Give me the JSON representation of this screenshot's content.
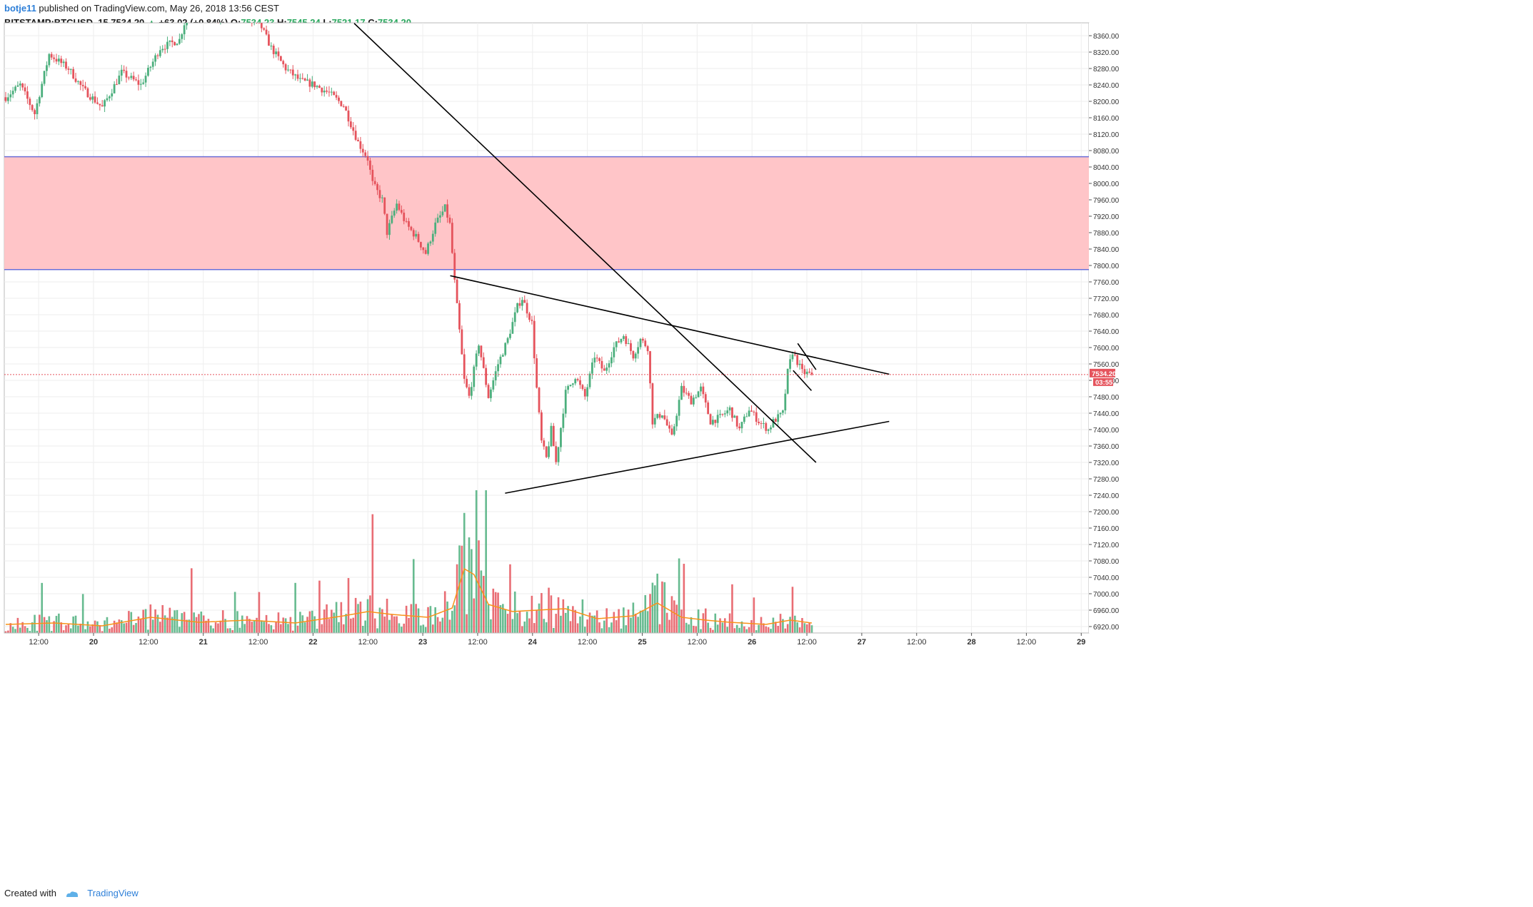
{
  "header": {
    "author": "botje11",
    "published_text": "published on TradingView.com, May 26, 2018 13:56 CEST",
    "symbol": "BITSTAMP:BTCUSD, 15",
    "last_price": "7534.20",
    "change_arrow": "▲",
    "change": "+63.02 (+0.84%)",
    "o_label": "O:",
    "o_value": "7534.23",
    "h_label": "H:",
    "h_value": "7545.24",
    "l_label": "L:",
    "l_value": "7521.17",
    "c_label": "C:",
    "c_value": "7534.20"
  },
  "footer": {
    "created_with": "Created with",
    "brand": "TradingView"
  },
  "price_tag": {
    "price": "7534.20",
    "countdown": "03:55"
  },
  "colors": {
    "up": "#4caf7d",
    "down": "#e5535c",
    "zone_fill": "#ffc2c5",
    "zone_line": "#6a6fd8",
    "trendline": "#000000",
    "vol_ma": "#f7931a",
    "grid": "#eeeeee",
    "price_tag": "#e5535c"
  },
  "chart_data": {
    "type": "candlestick",
    "symbol": "BITSTAMP:BTCUSD",
    "interval": "15",
    "ylim": [
      6900,
      8400
    ],
    "y_ticks": [
      "8360.00",
      "8320.00",
      "8280.00",
      "8240.00",
      "8200.00",
      "8160.00",
      "8120.00",
      "8080.00",
      "8040.00",
      "8000.00",
      "7960.00",
      "7920.00",
      "7880.00",
      "7840.00",
      "7800.00",
      "7760.00",
      "7720.00",
      "7680.00",
      "7640.00",
      "7600.00",
      "7560.00",
      "7520.00",
      "7480.00",
      "7440.00",
      "7400.00",
      "7360.00",
      "7320.00",
      "7280.00",
      "7240.00",
      "7200.00",
      "7160.00",
      "7120.00",
      "7080.00",
      "7040.00",
      "7000.00",
      "6960.00",
      "6920.00"
    ],
    "x_ticks": [
      "12:00",
      "20",
      "12:00",
      "21",
      "12:00",
      "22",
      "12:00",
      "23",
      "12:00",
      "24",
      "12:00",
      "25",
      "12:00",
      "26",
      "12:00",
      "27",
      "12:00",
      "28",
      "12:00",
      "29"
    ],
    "x_start": "May 19 06:00",
    "x_end": "May 29 12:00",
    "zone": {
      "top": 8065,
      "bottom": 7790
    },
    "trendlines": [
      {
        "name": "descending",
        "from": [
          "May 22 09:00",
          8390
        ],
        "to": [
          "May 26 14:00",
          7320
        ]
      },
      {
        "name": "upper",
        "from": [
          "May 23 06:00",
          7775
        ],
        "to": [
          "May 27 06:00",
          7535
        ]
      },
      {
        "name": "lower",
        "from": [
          "May 23 18:00",
          7245
        ],
        "to": [
          "May 27 06:00",
          7420
        ]
      },
      {
        "name": "flag-top",
        "from": [
          "May 26 10:00",
          7610
        ],
        "to": [
          "May 26 14:00",
          7546
        ]
      },
      {
        "name": "flag-bottom",
        "from": [
          "May 26 09:00",
          7544
        ],
        "to": [
          "May 26 13:00",
          7495
        ]
      }
    ],
    "current_price": 7534.2,
    "price_path": [
      [
        0,
        8210
      ],
      [
        6,
        8240
      ],
      [
        12,
        8170
      ],
      [
        18,
        8315
      ],
      [
        26,
        8280
      ],
      [
        32,
        8230
      ],
      [
        40,
        8185
      ],
      [
        48,
        8270
      ],
      [
        56,
        8240
      ],
      [
        64,
        8330
      ],
      [
        72,
        8350
      ],
      [
        76,
        8430
      ],
      [
        84,
        8420
      ],
      [
        88,
        8400
      ],
      [
        92,
        8440
      ],
      [
        96,
        8420
      ],
      [
        100,
        8400
      ],
      [
        106,
        8380
      ],
      [
        110,
        8330
      ],
      [
        116,
        8280
      ],
      [
        122,
        8250
      ],
      [
        128,
        8240
      ],
      [
        134,
        8220
      ],
      [
        140,
        8190
      ],
      [
        146,
        8100
      ],
      [
        150,
        8060
      ],
      [
        152,
        8000
      ],
      [
        156,
        7960
      ],
      [
        158,
        7880
      ],
      [
        162,
        7950
      ],
      [
        166,
        7900
      ],
      [
        170,
        7870
      ],
      [
        174,
        7830
      ],
      [
        178,
        7900
      ],
      [
        182,
        7940
      ],
      [
        184,
        7900
      ],
      [
        186,
        7760
      ],
      [
        188,
        7640
      ],
      [
        190,
        7520
      ],
      [
        192,
        7480
      ],
      [
        196,
        7610
      ],
      [
        200,
        7480
      ],
      [
        204,
        7560
      ],
      [
        208,
        7620
      ],
      [
        212,
        7700
      ],
      [
        214,
        7720
      ],
      [
        218,
        7660
      ],
      [
        220,
        7500
      ],
      [
        222,
        7370
      ],
      [
        224,
        7330
      ],
      [
        226,
        7400
      ],
      [
        228,
        7320
      ],
      [
        232,
        7490
      ],
      [
        236,
        7530
      ],
      [
        240,
        7480
      ],
      [
        244,
        7580
      ],
      [
        248,
        7540
      ],
      [
        252,
        7600
      ],
      [
        256,
        7630
      ],
      [
        260,
        7580
      ],
      [
        263,
        7620
      ],
      [
        266,
        7600
      ],
      [
        268,
        7420
      ],
      [
        272,
        7440
      ],
      [
        276,
        7380
      ],
      [
        280,
        7500
      ],
      [
        284,
        7470
      ],
      [
        288,
        7500
      ],
      [
        292,
        7420
      ],
      [
        296,
        7430
      ],
      [
        300,
        7450
      ],
      [
        304,
        7400
      ],
      [
        308,
        7450
      ],
      [
        312,
        7420
      ],
      [
        316,
        7400
      ],
      [
        318,
        7420
      ],
      [
        322,
        7440
      ],
      [
        324,
        7540
      ],
      [
        326,
        7590
      ],
      [
        330,
        7540
      ],
      [
        334,
        7534
      ]
    ],
    "volume_ma_path": [
      [
        0,
        12
      ],
      [
        20,
        14
      ],
      [
        40,
        10
      ],
      [
        60,
        22
      ],
      [
        80,
        15
      ],
      [
        100,
        18
      ],
      [
        120,
        14
      ],
      [
        140,
        24
      ],
      [
        150,
        30
      ],
      [
        160,
        26
      ],
      [
        175,
        22
      ],
      [
        185,
        35
      ],
      [
        190,
        90
      ],
      [
        194,
        82
      ],
      [
        200,
        40
      ],
      [
        210,
        30
      ],
      [
        220,
        32
      ],
      [
        232,
        34
      ],
      [
        245,
        20
      ],
      [
        260,
        24
      ],
      [
        270,
        42
      ],
      [
        280,
        22
      ],
      [
        290,
        18
      ],
      [
        300,
        15
      ],
      [
        315,
        12
      ],
      [
        325,
        18
      ],
      [
        334,
        14
      ]
    ]
  }
}
